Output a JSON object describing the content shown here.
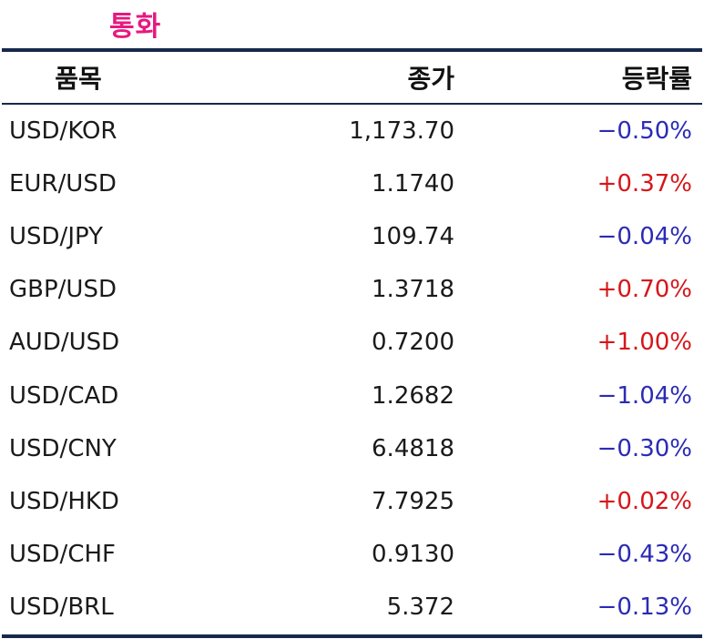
{
  "title": "통화",
  "headers": {
    "item": "품목",
    "close": "종가",
    "change": "등락률"
  },
  "rows": [
    {
      "item": "USD/KOR",
      "close": "1,173.70",
      "change": "−0.50%",
      "direction": "down"
    },
    {
      "item": "EUR/USD",
      "close": "1.1740",
      "change": "+0.37%",
      "direction": "up"
    },
    {
      "item": "USD/JPY",
      "close": "109.74",
      "change": "−0.04%",
      "direction": "down"
    },
    {
      "item": "GBP/USD",
      "close": "1.3718",
      "change": "+0.70%",
      "direction": "up"
    },
    {
      "item": "AUD/USD",
      "close": "0.7200",
      "change": "+1.00%",
      "direction": "up"
    },
    {
      "item": "USD/CAD",
      "close": "1.2682",
      "change": "−1.04%",
      "direction": "down"
    },
    {
      "item": "USD/CNY",
      "close": "6.4818",
      "change": "−0.30%",
      "direction": "down"
    },
    {
      "item": "USD/HKD",
      "close": "7.7925",
      "change": "+0.02%",
      "direction": "up"
    },
    {
      "item": "USD/CHF",
      "close": "0.9130",
      "change": "−0.43%",
      "direction": "down"
    },
    {
      "item": "USD/BRL",
      "close": "5.372",
      "change": "−0.13%",
      "direction": "down"
    }
  ],
  "colors": {
    "title": "#e6197f",
    "rule": "#17284d",
    "up": "#d6161a",
    "down": "#2b2bb5"
  }
}
